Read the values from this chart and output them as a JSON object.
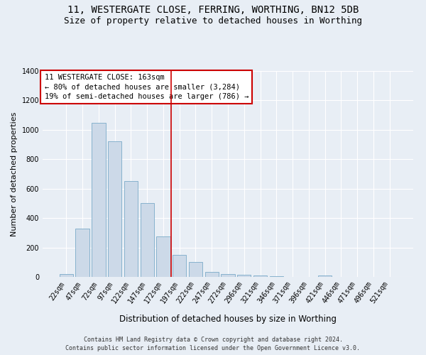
{
  "title1": "11, WESTERGATE CLOSE, FERRING, WORTHING, BN12 5DB",
  "title2": "Size of property relative to detached houses in Worthing",
  "xlabel": "Distribution of detached houses by size in Worthing",
  "ylabel": "Number of detached properties",
  "bar_color": "#ccd9e8",
  "bar_edge_color": "#7aaac8",
  "categories": [
    "22sqm",
    "47sqm",
    "72sqm",
    "97sqm",
    "122sqm",
    "147sqm",
    "172sqm",
    "197sqm",
    "222sqm",
    "247sqm",
    "272sqm",
    "296sqm",
    "321sqm",
    "346sqm",
    "371sqm",
    "396sqm",
    "421sqm",
    "446sqm",
    "471sqm",
    "496sqm",
    "521sqm"
  ],
  "values": [
    20,
    330,
    1050,
    920,
    650,
    500,
    275,
    150,
    100,
    35,
    20,
    15,
    10,
    5,
    2,
    1,
    8,
    1,
    0,
    0,
    0
  ],
  "ylim": [
    0,
    1400
  ],
  "yticks": [
    0,
    200,
    400,
    600,
    800,
    1000,
    1200,
    1400
  ],
  "vline_x": 6.5,
  "vline_color": "#cc0000",
  "annotation_text": "11 WESTERGATE CLOSE: 163sqm\n← 80% of detached houses are smaller (3,284)\n19% of semi-detached houses are larger (786) →",
  "annotation_box_color": "#ffffff",
  "annotation_box_edge": "#cc0000",
  "footnote": "Contains HM Land Registry data © Crown copyright and database right 2024.\nContains public sector information licensed under the Open Government Licence v3.0.",
  "background_color": "#e8eef5",
  "plot_bg_color": "#e8eef5",
  "grid_color": "#ffffff",
  "title_fontsize": 10,
  "subtitle_fontsize": 9,
  "tick_fontsize": 7,
  "ylabel_fontsize": 8,
  "xlabel_fontsize": 8.5,
  "footnote_fontsize": 6,
  "annotation_fontsize": 7.5
}
